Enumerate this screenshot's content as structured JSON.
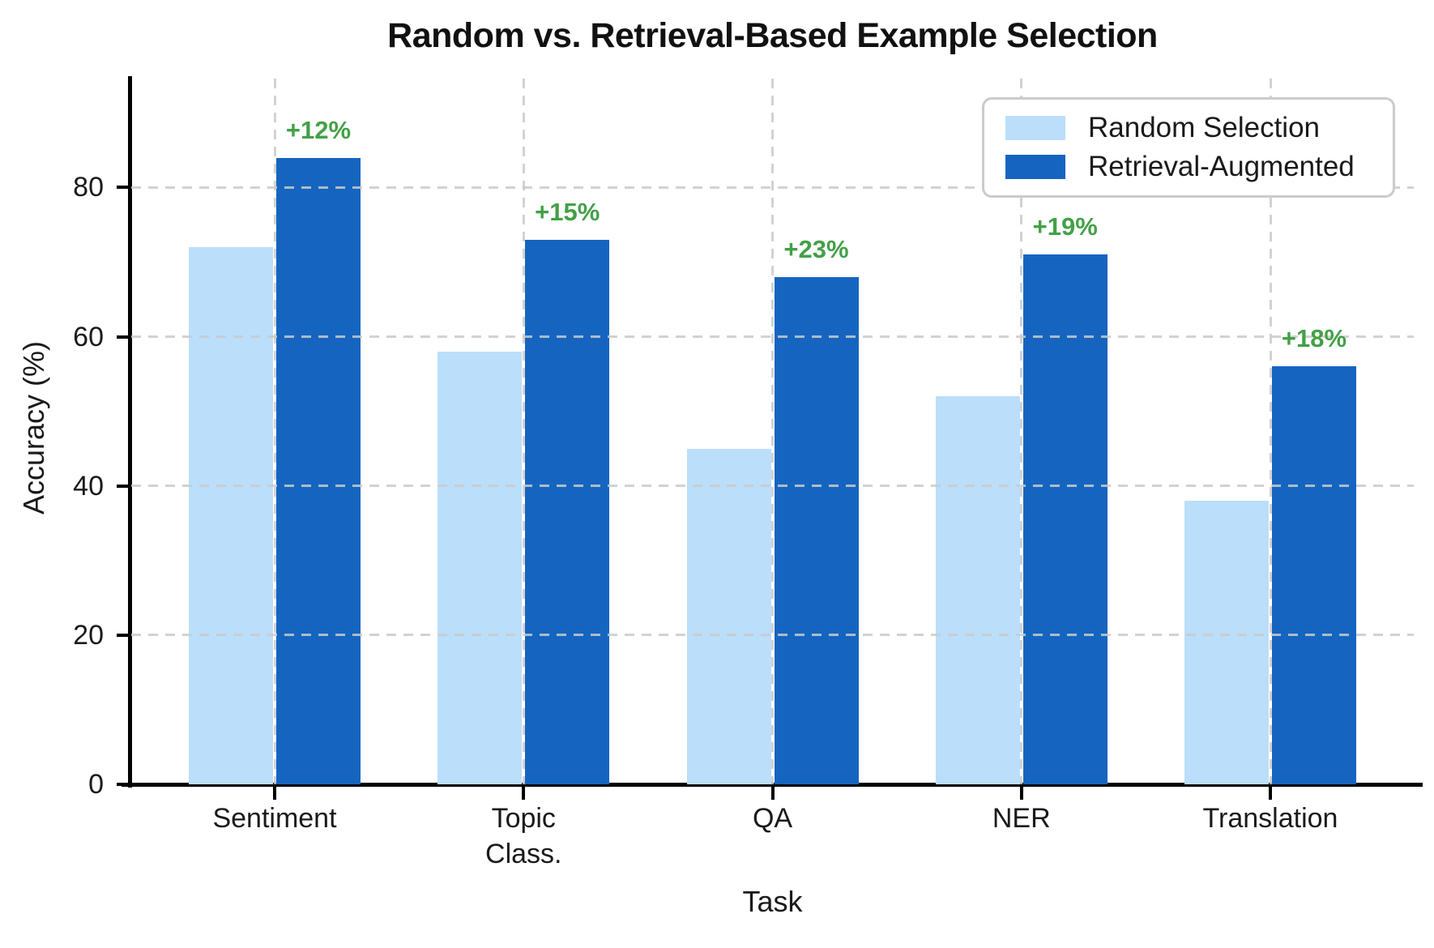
{
  "chart_data": {
    "type": "bar",
    "title": "Random vs. Retrieval-Based Example Selection",
    "xlabel": "Task",
    "ylabel": "Accuracy (%)",
    "categories": [
      "Sentiment",
      "Topic\nClass.",
      "QA",
      "NER",
      "Translation"
    ],
    "series": [
      {
        "name": "Random Selection",
        "color": "#BBDEFB",
        "values": [
          72,
          58,
          45,
          52,
          38
        ]
      },
      {
        "name": "Retrieval-Augmented",
        "color": "#1565C0",
        "values": [
          84,
          73,
          68,
          71,
          56
        ]
      }
    ],
    "improvement_labels": {
      "color": "#43A047",
      "values": [
        "+12%",
        "+15%",
        "+23%",
        "+19%",
        "+18%"
      ]
    },
    "yticks": [
      0,
      20,
      40,
      60,
      80
    ],
    "ylim": [
      0,
      94.6
    ],
    "grid": {
      "style": "dashed",
      "axes": "both",
      "color": "#cccccc"
    },
    "legend_position": "upper right"
  }
}
